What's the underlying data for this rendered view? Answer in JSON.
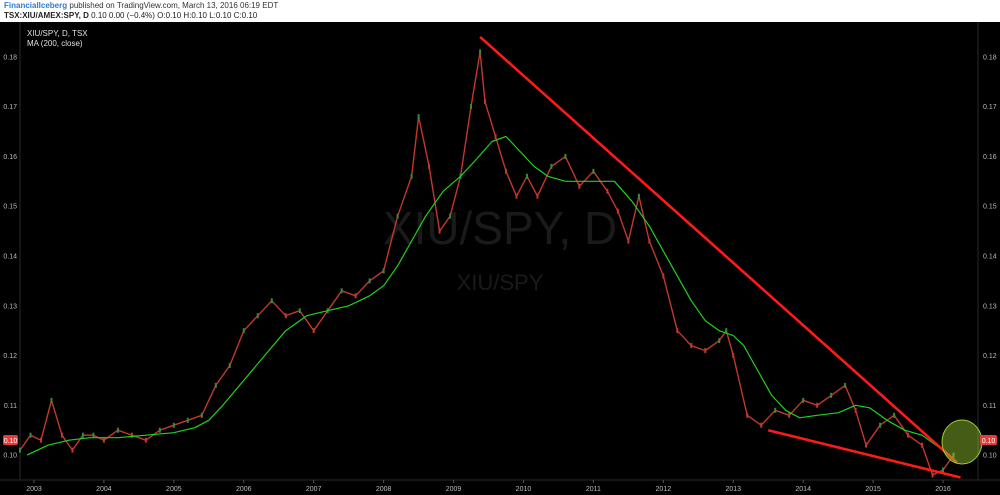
{
  "header": {
    "author": "FinancialIceberg",
    "published": " published on TradingView.com, March 13, 2016 06:19 EDT",
    "symbol_line": "TSX:XIU/AMEX:SPY, D",
    "quote": "0.10 0.00 (−0.4%) O:0.10 H:0.10 L:0.10 C:0.10"
  },
  "legend": {
    "symbol": "XIU/SPY, D, TSX",
    "ma": "MA (200, close)"
  },
  "watermark": {
    "main": "XIU/SPY, D",
    "sub": "XIU/SPY"
  },
  "price_tag": "0.10",
  "colors": {
    "background": "#000000",
    "candle_up": "#3a8a3a",
    "candle_down": "#c0392b",
    "ma_line": "#1fd11f",
    "trendline": "#ff1a1a",
    "highlight": "#9acd32",
    "price_tag": "#e63b3b"
  },
  "chart_data": {
    "type": "line",
    "title": "XIU/SPY, D, TSX",
    "x_unit": "year",
    "x_ticks": [
      "2003",
      "2004",
      "2005",
      "2006",
      "2007",
      "2008",
      "2009",
      "2010",
      "2011",
      "2012",
      "2013",
      "2014",
      "2015",
      "2016"
    ],
    "y_ticks": [
      "0.18",
      "0.17",
      "0.16",
      "0.15",
      "0.14",
      "0.13",
      "0.12",
      "0.11",
      "0.10"
    ],
    "ylim": [
      0.095,
      0.187
    ],
    "xlim": [
      2002.8,
      2016.5
    ],
    "log_scale": false,
    "grid": false,
    "series": [
      {
        "name": "XIU/SPY",
        "kind": "price",
        "points": [
          [
            2002.8,
            0.101
          ],
          [
            2002.95,
            0.104
          ],
          [
            2003.1,
            0.103
          ],
          [
            2003.25,
            0.111
          ],
          [
            2003.4,
            0.104
          ],
          [
            2003.55,
            0.101
          ],
          [
            2003.7,
            0.104
          ],
          [
            2003.85,
            0.104
          ],
          [
            2004.0,
            0.103
          ],
          [
            2004.2,
            0.105
          ],
          [
            2004.4,
            0.104
          ],
          [
            2004.6,
            0.103
          ],
          [
            2004.8,
            0.105
          ],
          [
            2005.0,
            0.106
          ],
          [
            2005.2,
            0.107
          ],
          [
            2005.4,
            0.108
          ],
          [
            2005.6,
            0.114
          ],
          [
            2005.8,
            0.118
          ],
          [
            2006.0,
            0.125
          ],
          [
            2006.2,
            0.128
          ],
          [
            2006.4,
            0.131
          ],
          [
            2006.6,
            0.128
          ],
          [
            2006.8,
            0.129
          ],
          [
            2007.0,
            0.125
          ],
          [
            2007.2,
            0.129
          ],
          [
            2007.4,
            0.133
          ],
          [
            2007.6,
            0.132
          ],
          [
            2007.8,
            0.135
          ],
          [
            2008.0,
            0.137
          ],
          [
            2008.2,
            0.148
          ],
          [
            2008.4,
            0.156
          ],
          [
            2008.5,
            0.168
          ],
          [
            2008.65,
            0.158
          ],
          [
            2008.8,
            0.145
          ],
          [
            2008.95,
            0.148
          ],
          [
            2009.1,
            0.156
          ],
          [
            2009.25,
            0.17
          ],
          [
            2009.38,
            0.181
          ],
          [
            2009.45,
            0.171
          ],
          [
            2009.6,
            0.164
          ],
          [
            2009.75,
            0.157
          ],
          [
            2009.9,
            0.152
          ],
          [
            2010.05,
            0.156
          ],
          [
            2010.2,
            0.152
          ],
          [
            2010.4,
            0.158
          ],
          [
            2010.6,
            0.16
          ],
          [
            2010.8,
            0.154
          ],
          [
            2011.0,
            0.157
          ],
          [
            2011.2,
            0.153
          ],
          [
            2011.35,
            0.149
          ],
          [
            2011.5,
            0.143
          ],
          [
            2011.65,
            0.152
          ],
          [
            2011.8,
            0.143
          ],
          [
            2012.0,
            0.136
          ],
          [
            2012.2,
            0.125
          ],
          [
            2012.4,
            0.122
          ],
          [
            2012.6,
            0.121
          ],
          [
            2012.8,
            0.123
          ],
          [
            2012.9,
            0.125
          ],
          [
            2013.0,
            0.12
          ],
          [
            2013.2,
            0.108
          ],
          [
            2013.4,
            0.106
          ],
          [
            2013.6,
            0.109
          ],
          [
            2013.8,
            0.108
          ],
          [
            2014.0,
            0.111
          ],
          [
            2014.2,
            0.11
          ],
          [
            2014.4,
            0.112
          ],
          [
            2014.6,
            0.114
          ],
          [
            2014.75,
            0.109
          ],
          [
            2014.9,
            0.102
          ],
          [
            2015.1,
            0.106
          ],
          [
            2015.3,
            0.108
          ],
          [
            2015.5,
            0.104
          ],
          [
            2015.7,
            0.102
          ],
          [
            2015.85,
            0.096
          ],
          [
            2016.0,
            0.097
          ],
          [
            2016.15,
            0.1
          ]
        ]
      },
      {
        "name": "MA (200, close)",
        "kind": "ma",
        "points": [
          [
            2002.9,
            0.1
          ],
          [
            2003.2,
            0.102
          ],
          [
            2003.5,
            0.103
          ],
          [
            2003.8,
            0.1035
          ],
          [
            2004.2,
            0.1035
          ],
          [
            2004.6,
            0.104
          ],
          [
            2005.0,
            0.1045
          ],
          [
            2005.3,
            0.1055
          ],
          [
            2005.5,
            0.107
          ],
          [
            2005.7,
            0.11
          ],
          [
            2006.0,
            0.115
          ],
          [
            2006.3,
            0.12
          ],
          [
            2006.6,
            0.125
          ],
          [
            2006.9,
            0.128
          ],
          [
            2007.2,
            0.129
          ],
          [
            2007.5,
            0.13
          ],
          [
            2007.8,
            0.132
          ],
          [
            2008.0,
            0.134
          ],
          [
            2008.2,
            0.138
          ],
          [
            2008.4,
            0.143
          ],
          [
            2008.6,
            0.148
          ],
          [
            2008.85,
            0.153
          ],
          [
            2009.1,
            0.156
          ],
          [
            2009.3,
            0.159
          ],
          [
            2009.55,
            0.163
          ],
          [
            2009.75,
            0.164
          ],
          [
            2009.95,
            0.161
          ],
          [
            2010.15,
            0.158
          ],
          [
            2010.35,
            0.156
          ],
          [
            2010.6,
            0.155
          ],
          [
            2010.85,
            0.155
          ],
          [
            2011.1,
            0.155
          ],
          [
            2011.3,
            0.155
          ],
          [
            2011.55,
            0.151
          ],
          [
            2011.8,
            0.146
          ],
          [
            2012.0,
            0.141
          ],
          [
            2012.2,
            0.136
          ],
          [
            2012.4,
            0.131
          ],
          [
            2012.6,
            0.127
          ],
          [
            2012.8,
            0.125
          ],
          [
            2013.0,
            0.124
          ],
          [
            2013.15,
            0.122
          ],
          [
            2013.35,
            0.117
          ],
          [
            2013.55,
            0.112
          ],
          [
            2013.75,
            0.109
          ],
          [
            2013.95,
            0.1075
          ],
          [
            2014.2,
            0.108
          ],
          [
            2014.5,
            0.1085
          ],
          [
            2014.75,
            0.11
          ],
          [
            2014.95,
            0.1095
          ],
          [
            2015.2,
            0.107
          ],
          [
            2015.45,
            0.105
          ],
          [
            2015.7,
            0.104
          ],
          [
            2015.9,
            0.102
          ],
          [
            2016.1,
            0.1
          ]
        ]
      }
    ],
    "trendlines": [
      {
        "name": "resistance",
        "from": [
          2009.38,
          0.184
        ],
        "to": [
          2016.2,
          0.0985
        ]
      },
      {
        "name": "support",
        "from": [
          2013.5,
          0.105
        ],
        "to": [
          2016.25,
          0.0955
        ]
      }
    ]
  }
}
